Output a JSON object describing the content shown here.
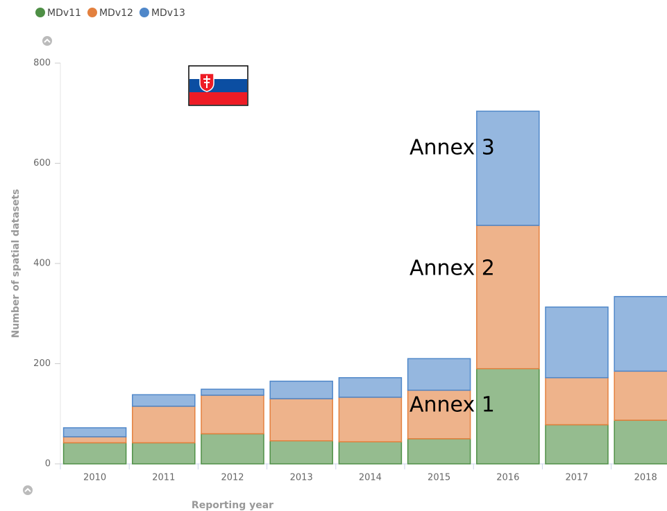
{
  "chart_data": {
    "type": "stacked_bar",
    "xlabel": "Reporting year",
    "ylabel": "Number of spatial datasets",
    "categories": [
      "2010",
      "2011",
      "2012",
      "2013",
      "2014",
      "2015",
      "2016",
      "2017",
      "2018"
    ],
    "series": [
      {
        "name": "MDv11",
        "color": "#4e8f45",
        "values": [
          42,
          42,
          60,
          46,
          44,
          50,
          190,
          78,
          87
        ]
      },
      {
        "name": "MDv12",
        "color": "#e3803e",
        "values": [
          12,
          73,
          77,
          84,
          89,
          97,
          286,
          94,
          98
        ]
      },
      {
        "name": "MDv13",
        "color": "#4f87c9",
        "values": [
          18,
          23,
          12,
          35,
          39,
          63,
          228,
          141,
          149
        ]
      }
    ],
    "ylim": [
      0,
      800
    ],
    "yticks": [
      0,
      200,
      400,
      600,
      800
    ],
    "grid": false,
    "annotations": [
      "Annex 3",
      "Annex 2",
      "Annex 1"
    ]
  }
}
